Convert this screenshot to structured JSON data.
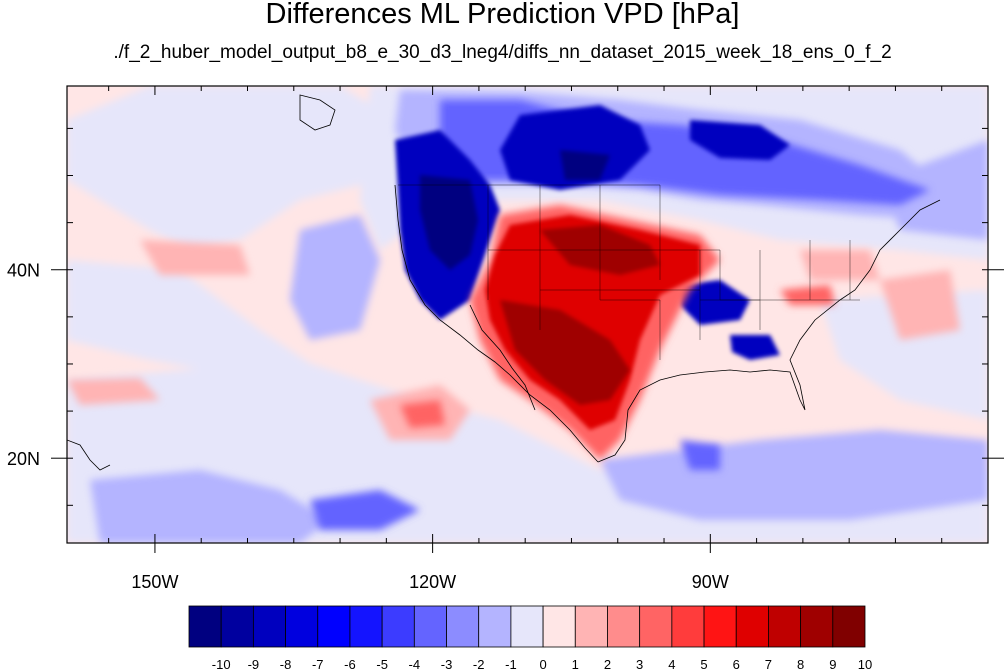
{
  "title": "Differences ML Prediction VPD [hPa]",
  "subtitle": "./f_2_huber_model_output_b8_e_30_d3_lneg4/diffs_nn_dataset_2015_week_18_ens_0_f_2",
  "axes": {
    "x_ticks": [
      {
        "value": -150,
        "label": "150W"
      },
      {
        "value": -120,
        "label": "120W"
      },
      {
        "value": -90,
        "label": "90W"
      }
    ],
    "y_ticks": [
      {
        "value": 40,
        "label": "40N"
      },
      {
        "value": 20,
        "label": "20N"
      }
    ],
    "lon_range": [
      -159.5,
      -60
    ],
    "lat_range": [
      11,
      59.5
    ]
  },
  "colorbar": {
    "labels": [
      "-10",
      "-9",
      "-8",
      "-7",
      "-6",
      "-5",
      "-4",
      "-3",
      "-2",
      "-1",
      "0",
      "1",
      "2",
      "3",
      "4",
      "5",
      "6",
      "7",
      "8",
      "9",
      "10"
    ],
    "colors": [
      "#000080",
      "#00009f",
      "#0000bf",
      "#0000df",
      "#0000ff",
      "#1414ff",
      "#3c3cff",
      "#6464ff",
      "#8c8cff",
      "#b4b4ff",
      "#e6e6fa",
      "#ffe6e6",
      "#ffb4b4",
      "#ff8c8c",
      "#ff6464",
      "#ff3c3c",
      "#ff1414",
      "#df0000",
      "#bf0000",
      "#9f0000",
      "#800000"
    ]
  },
  "colors": {
    "background": "#ffe6e6",
    "light_blue": "#e6e6fa",
    "dark_blue": "#0000bf",
    "dark_red": "#9f0000"
  }
}
